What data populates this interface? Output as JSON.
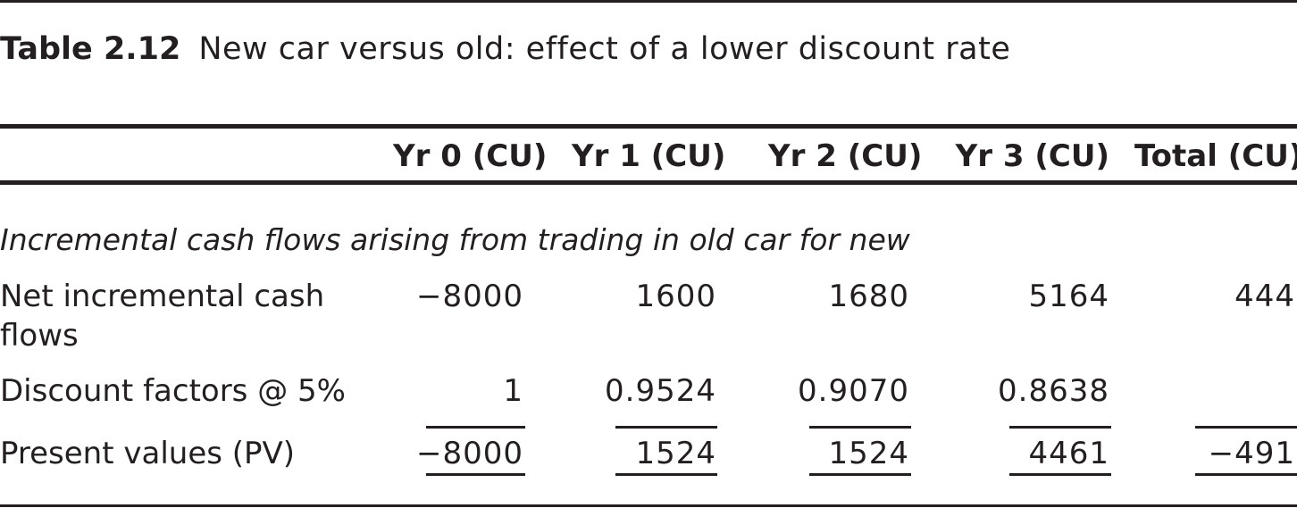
{
  "caption": {
    "label": "Table 2.12",
    "title": "New car versus old: effect of a lower discount rate"
  },
  "columns": [
    "Yr 0 (CU)",
    "Yr 1 (CU)",
    "Yr 2 (CU)",
    "Yr 3 (CU)",
    "Total (CU)"
  ],
  "section_title": "Incremental cash flows arising from trading in old car for new",
  "rows": [
    {
      "label": "Net incremental cash flows",
      "values": [
        "−8000",
        "1600",
        "1680",
        "5164",
        "444"
      ]
    },
    {
      "label": "Discount factors @ 5%",
      "values": [
        "1",
        "0.9524",
        "0.9070",
        "0.8638",
        ""
      ]
    },
    {
      "label": "Present values (PV)",
      "values": [
        "−8000",
        "1524",
        "1524",
        "4461",
        "−491"
      ]
    }
  ]
}
